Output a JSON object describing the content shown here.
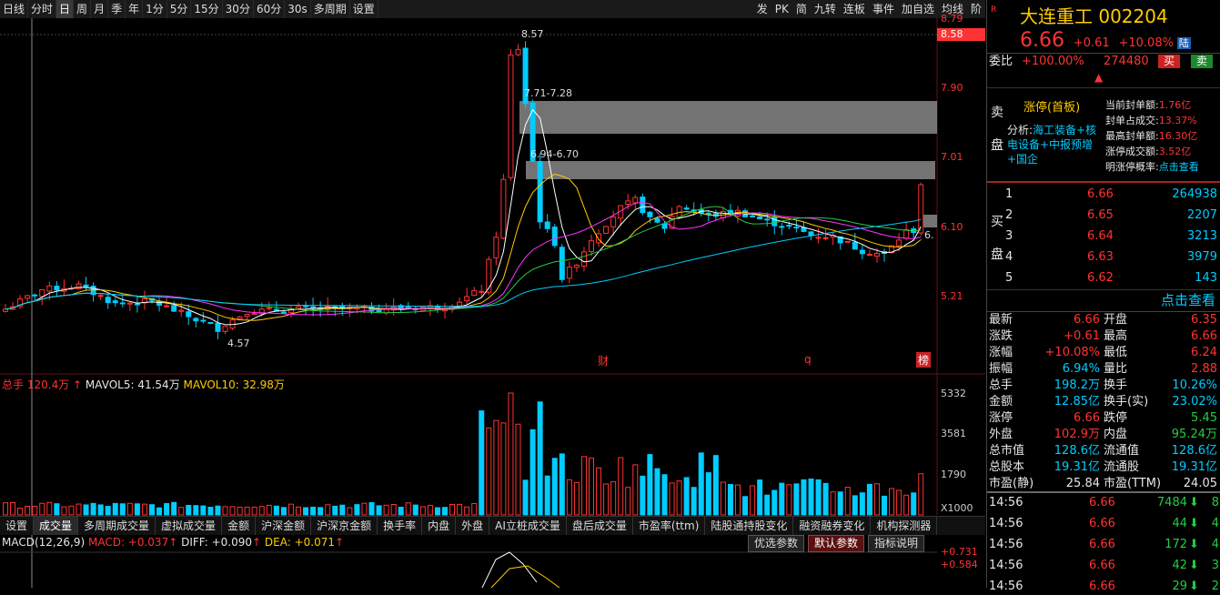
{
  "toolbar": {
    "items": [
      "日线",
      "分时",
      "日",
      "周",
      "月",
      "季",
      "年",
      "1分",
      "5分",
      "15分",
      "30分",
      "60分",
      "30s",
      "多周期",
      "设置"
    ],
    "right_items": [
      "发",
      "PK",
      "简",
      "九转",
      "连板",
      "事件",
      "加自选",
      "均线",
      "阶"
    ]
  },
  "price_axis": [
    "8.79",
    "8.58",
    "7.90",
    "7.01",
    "6.10",
    "5.21"
  ],
  "price_axis_top": "8.79",
  "price_axis_hl": "8.58",
  "annotations": {
    "high": "8.57",
    "band1": "7.71-7.28",
    "band2": "6.94-6.70",
    "low": "4.57",
    "last": "6.",
    "cai": "财",
    "q": "q",
    "bang": "榜"
  },
  "vol_header": {
    "label": "总手",
    "total": "120.4万",
    "mavol5": "MAVOL5: 41.54万",
    "mavol10": "MAVOL10: 32.98万"
  },
  "vol_axis": [
    "5332",
    "3581",
    "1790",
    "X1000"
  ],
  "tabs": [
    "设置",
    "成交量",
    "多周期成交量",
    "虚拟成交量",
    "金额",
    "沪深金额",
    "沪深京金额",
    "换手率",
    "内盘",
    "外盘",
    "AI立桩成交量",
    "盘后成交量",
    "市盈率(ttm)",
    "陆股通持股变化",
    "融资融券变化",
    "机构探测器"
  ],
  "macd_header": {
    "label": "MACD(12,26,9)",
    "macd": "MACD: +0.037",
    "diff": "DIFF: +0.090",
    "dea": "DEA: +0.071"
  },
  "macd_buttons": [
    "优选参数",
    "默认参数",
    "指标说明"
  ],
  "macd_axis": [
    "+0.731",
    "+0.584"
  ],
  "stock": {
    "name": "大连重工",
    "code": "002204",
    "price": "6.66",
    "change": "+0.61",
    "pct": "+10.08%",
    "tag": "陆",
    "weibi_label": "委比",
    "weibi": "+100.00%",
    "weicha": "274480",
    "buy": "买",
    "sell": "卖"
  },
  "limit_box": {
    "side_top": "卖",
    "side_bottom": "盘",
    "title": "涨停(首板)",
    "analysis_prefix": "分析:",
    "analysis": "海工装备+核电设备+中报预增+国企",
    "stats": [
      {
        "k": "当前封单额:",
        "v": "1.76亿"
      },
      {
        "k": "封单占成交:",
        "v": "13.37%"
      },
      {
        "k": "最高封单额:",
        "v": "16.30亿"
      },
      {
        "k": "涨停成交额:",
        "v": "3.52亿"
      },
      {
        "k": "明涨停概率:",
        "v": "点击查看"
      }
    ]
  },
  "bids_label": [
    "买",
    "盘"
  ],
  "bids": [
    {
      "n": "1",
      "p": "6.66",
      "v": "264938"
    },
    {
      "n": "2",
      "p": "6.65",
      "v": "2207"
    },
    {
      "n": "3",
      "p": "6.64",
      "v": "3213"
    },
    {
      "n": "4",
      "p": "6.63",
      "v": "3979"
    },
    {
      "n": "5",
      "p": "6.62",
      "v": "143"
    }
  ],
  "click_view": "点击查看",
  "quote": [
    {
      "k1": "最新",
      "v1": "6.66",
      "c1": "red",
      "k2": "开盘",
      "v2": "6.35",
      "c2": "red"
    },
    {
      "k1": "涨跌",
      "v1": "+0.61",
      "c1": "red",
      "k2": "最高",
      "v2": "6.66",
      "c2": "red"
    },
    {
      "k1": "涨幅",
      "v1": "+10.08%",
      "c1": "red",
      "k2": "最低",
      "v2": "6.24",
      "c2": "red"
    },
    {
      "k1": "振幅",
      "v1": "6.94%",
      "c1": "cyan",
      "k2": "量比",
      "v2": "2.88",
      "c2": "red"
    },
    {
      "k1": "总手",
      "v1": "198.2万",
      "c1": "cyan",
      "k2": "换手",
      "v2": "10.26%",
      "c2": "cyan"
    },
    {
      "k1": "金额",
      "v1": "12.85亿",
      "c1": "cyan",
      "k2": "换手(实)",
      "v2": "23.02%",
      "c2": "cyan"
    },
    {
      "k1": "涨停",
      "v1": "6.66",
      "c1": "red",
      "k2": "跌停",
      "v2": "5.45",
      "c2": "grn"
    },
    {
      "k1": "外盘",
      "v1": "102.9万",
      "c1": "red",
      "k2": "内盘",
      "v2": "95.24万",
      "c2": "grn"
    },
    {
      "k1": "总市值",
      "v1": "128.6亿",
      "c1": "cyan",
      "k2": "流通值",
      "v2": "128.6亿",
      "c2": "cyan"
    },
    {
      "k1": "总股本",
      "v1": "19.31亿",
      "c1": "cyan",
      "k2": "流通股",
      "v2": "19.31亿",
      "c2": "cyan"
    },
    {
      "k1": "市盈(静)",
      "v1": "25.84",
      "c1": "wht",
      "k2": "市盈(TTM)",
      "v2": "24.05",
      "c2": "wht"
    }
  ],
  "ticks": [
    {
      "t": "14:56",
      "p": "6.66",
      "v": "7484",
      "x": "8"
    },
    {
      "t": "14:56",
      "p": "6.66",
      "v": "44",
      "x": "4"
    },
    {
      "t": "14:56",
      "p": "6.66",
      "v": "172",
      "x": "4"
    },
    {
      "t": "14:56",
      "p": "6.66",
      "v": "42",
      "x": "3"
    },
    {
      "t": "14:56",
      "p": "6.66",
      "v": "29",
      "x": "2"
    }
  ],
  "colors": {
    "up": "#ff3333",
    "down": "#00ccff",
    "bg": "#000000",
    "ma5": "#ffffff",
    "ma10": "#ffcc00",
    "ma20": "#ff33ff",
    "ma60": "#22cc44",
    "ma120": "#00ccff"
  }
}
